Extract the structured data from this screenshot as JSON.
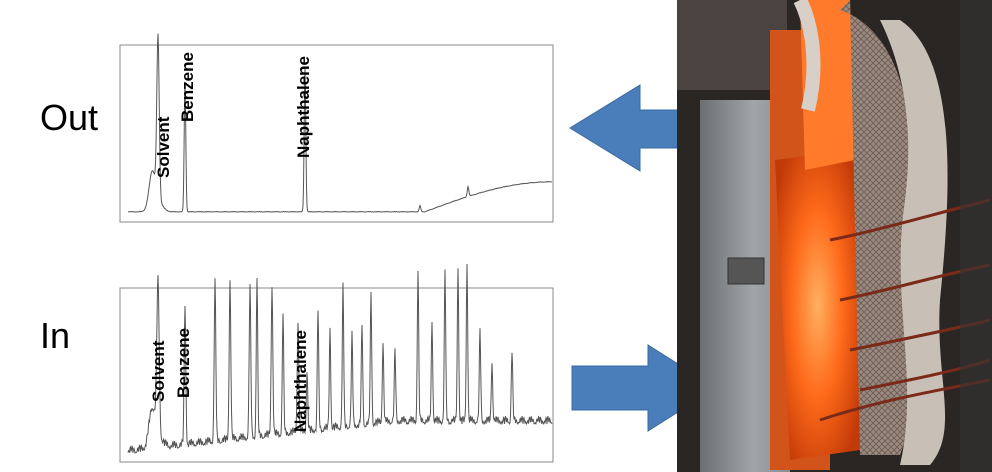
{
  "figure": {
    "out": {
      "label": "Out",
      "peaks": [
        "Solvent",
        "Benzene",
        "Naphthalene"
      ]
    },
    "in": {
      "label": "In",
      "peaks": [
        "Solvent",
        "Benzene",
        "Naphthalene"
      ]
    }
  }
}
